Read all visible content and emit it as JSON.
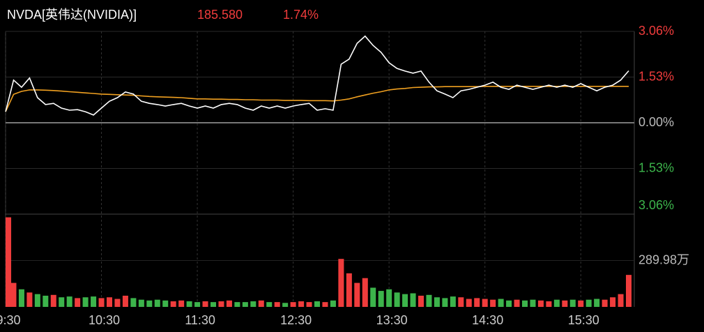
{
  "header": {
    "symbol": "NVDA[英伟达(NVIDIA)]",
    "price": "185.580",
    "change": "1.74%"
  },
  "chart_data": [
    {
      "type": "line",
      "x": [
        "9:30",
        "9:35",
        "9:40",
        "9:45",
        "9:50",
        "9:55",
        "10:00",
        "10:05",
        "10:10",
        "10:15",
        "10:20",
        "10:25",
        "10:30",
        "10:35",
        "10:40",
        "10:45",
        "10:50",
        "10:55",
        "11:00",
        "11:05",
        "11:10",
        "11:15",
        "11:20",
        "11:25",
        "11:30",
        "11:35",
        "11:40",
        "11:45",
        "11:50",
        "11:55",
        "12:00",
        "12:05",
        "12:10",
        "12:15",
        "12:20",
        "12:25",
        "12:30",
        "12:35",
        "12:40",
        "12:45",
        "12:50",
        "12:55",
        "13:00",
        "13:05",
        "13:10",
        "13:15",
        "13:20",
        "13:25",
        "13:30",
        "13:35",
        "13:40",
        "13:45",
        "13:50",
        "13:55",
        "14:00",
        "14:05",
        "14:10",
        "14:15",
        "14:20",
        "14:25",
        "14:30",
        "14:35",
        "14:40",
        "14:45",
        "14:50",
        "14:55",
        "15:00",
        "15:05",
        "15:10",
        "15:15",
        "15:20",
        "15:25",
        "15:30",
        "15:35",
        "15:40",
        "15:45",
        "15:50",
        "15:55",
        "16:00"
      ],
      "xlim": [
        "9:30",
        "16:00"
      ],
      "xticks": [
        "9:30",
        "10:30",
        "11:30",
        "12:30",
        "13:30",
        "14:30",
        "15:30"
      ],
      "ylim": [
        -3.06,
        3.06
      ],
      "yticks": [
        {
          "value": 3.06,
          "label": "3.06%"
        },
        {
          "value": 1.53,
          "label": "1.53%"
        },
        {
          "value": 0,
          "label": "0.00%"
        },
        {
          "value": -1.53,
          "label": "1.53%"
        },
        {
          "value": -3.06,
          "label": "3.06%"
        }
      ],
      "up_color": "#f03c3c",
      "down_color": "#3cb44b",
      "series": [
        {
          "color": "#ffffff",
          "values": [
            0.37,
            1.43,
            1.19,
            1.5,
            0.84,
            0.61,
            0.65,
            0.49,
            0.42,
            0.44,
            0.37,
            0.26,
            0.49,
            0.72,
            0.84,
            1.03,
            0.96,
            0.72,
            0.65,
            0.61,
            0.56,
            0.61,
            0.65,
            0.56,
            0.49,
            0.56,
            0.49,
            0.61,
            0.65,
            0.61,
            0.49,
            0.42,
            0.56,
            0.49,
            0.56,
            0.49,
            0.56,
            0.61,
            0.65,
            0.42,
            0.47,
            0.42,
            1.96,
            2.13,
            2.66,
            2.9,
            2.59,
            2.36,
            2.01,
            1.82,
            1.73,
            1.66,
            1.73,
            1.36,
            1.07,
            0.96,
            0.84,
            1.07,
            1.12,
            1.19,
            1.26,
            1.36,
            1.19,
            1.12,
            1.26,
            1.19,
            1.12,
            1.19,
            1.26,
            1.19,
            1.26,
            1.19,
            1.31,
            1.19,
            1.07,
            1.19,
            1.26,
            1.43,
            1.74
          ]
        },
        {
          "color": "#f0a020",
          "values": [
            0.37,
            0.95,
            1.05,
            1.1,
            1.1,
            1.09,
            1.08,
            1.06,
            1.04,
            1.02,
            1.0,
            0.98,
            0.96,
            0.95,
            0.94,
            0.93,
            0.92,
            0.9,
            0.88,
            0.87,
            0.86,
            0.85,
            0.84,
            0.82,
            0.8,
            0.8,
            0.79,
            0.79,
            0.78,
            0.78,
            0.77,
            0.77,
            0.76,
            0.76,
            0.76,
            0.75,
            0.75,
            0.75,
            0.74,
            0.74,
            0.74,
            0.73,
            0.76,
            0.8,
            0.87,
            0.93,
            0.99,
            1.04,
            1.1,
            1.13,
            1.15,
            1.18,
            1.19,
            1.2,
            1.2,
            1.21,
            1.21,
            1.21,
            1.21,
            1.21,
            1.22,
            1.22,
            1.22,
            1.22,
            1.22,
            1.22,
            1.22,
            1.22,
            1.22,
            1.22,
            1.22,
            1.22,
            1.22,
            1.22,
            1.22,
            1.22,
            1.22,
            1.22,
            1.22
          ]
        }
      ]
    },
    {
      "type": "bar",
      "ylim": [
        0,
        579.96
      ],
      "yticks": [
        {
          "value": 289.98,
          "label": "289.98万"
        }
      ],
      "up_color": "#f03c3c",
      "down_color": "#3cb44b",
      "values": [
        560,
        150,
        110,
        90,
        80,
        70,
        75,
        60,
        65,
        55,
        60,
        65,
        55,
        60,
        50,
        70,
        55,
        45,
        40,
        45,
        40,
        35,
        40,
        35,
        30,
        35,
        30,
        35,
        40,
        30,
        30,
        35,
        40,
        30,
        30,
        25,
        30,
        35,
        30,
        35,
        30,
        40,
        300,
        210,
        150,
        180,
        120,
        100,
        110,
        90,
        80,
        85,
        70,
        75,
        60,
        55,
        65,
        60,
        50,
        55,
        50,
        45,
        50,
        40,
        45,
        40,
        45,
        40,
        35,
        45,
        40,
        45,
        40,
        45,
        50,
        45,
        60,
        80,
        200
      ]
    }
  ]
}
